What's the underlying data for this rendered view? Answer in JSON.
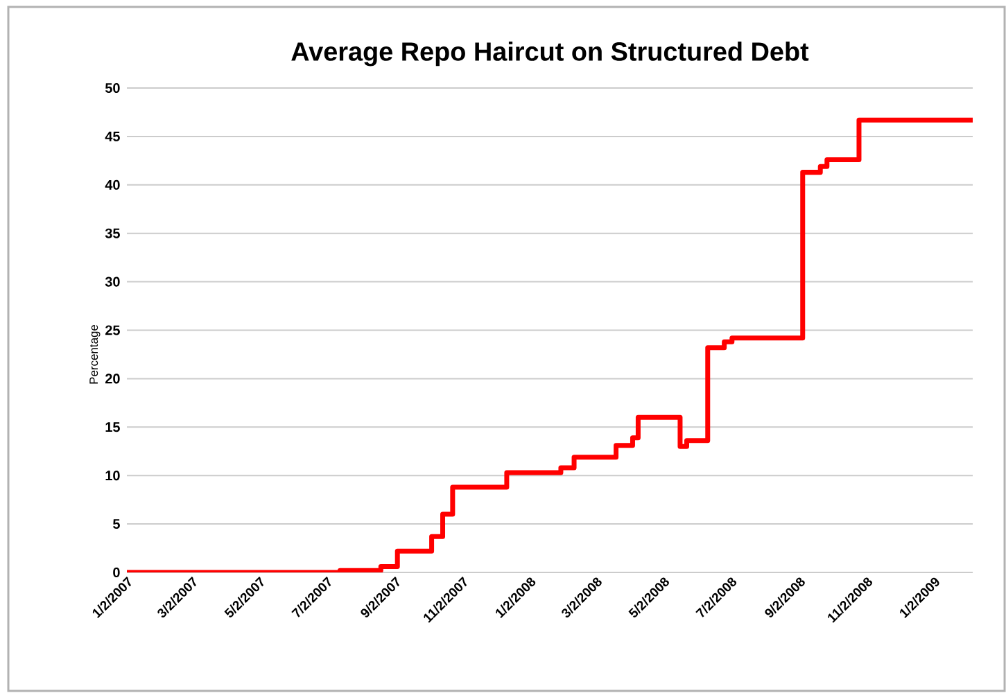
{
  "chart_data": {
    "type": "step",
    "title": "Average  Repo Haircut on Structured Debt",
    "ylabel": "Percentage",
    "x": [
      "2007-01-02",
      "2007-07-14",
      "2007-08-20",
      "2007-09-04",
      "2007-10-05",
      "2007-10-15",
      "2007-10-24",
      "2007-12-12",
      "2008-01-30",
      "2008-02-11",
      "2008-03-20",
      "2008-04-04",
      "2008-04-09",
      "2008-05-17",
      "2008-05-23",
      "2008-06-11",
      "2008-06-26",
      "2008-07-03",
      "2008-09-05",
      "2008-09-21",
      "2008-09-27",
      "2008-10-26",
      "2009-02-06"
    ],
    "values": [
      0,
      0.2,
      0.6,
      2.2,
      3.7,
      6,
      8.8,
      10.3,
      10.8,
      11.9,
      13.1,
      13.9,
      16,
      13,
      13.6,
      23.2,
      23.8,
      24.2,
      41.3,
      41.9,
      42.6,
      46.7,
      46.7
    ],
    "color": "#ff0000",
    "xlim": [
      "2007-01-02",
      "2009-02-06"
    ],
    "xticks": [
      {
        "value": "2007-01-02",
        "label": "1/2/2007"
      },
      {
        "value": "2007-03-02",
        "label": "3/2/2007"
      },
      {
        "value": "2007-05-02",
        "label": "5/2/2007"
      },
      {
        "value": "2007-07-02",
        "label": "7/2/2007"
      },
      {
        "value": "2007-09-02",
        "label": "9/2/2007"
      },
      {
        "value": "2007-11-02",
        "label": "11/2/2007"
      },
      {
        "value": "2008-01-02",
        "label": "1/2/2008"
      },
      {
        "value": "2008-03-02",
        "label": "3/2/2008"
      },
      {
        "value": "2008-05-02",
        "label": "5/2/2008"
      },
      {
        "value": "2008-07-02",
        "label": "7/2/2008"
      },
      {
        "value": "2008-09-02",
        "label": "9/2/2008"
      },
      {
        "value": "2008-11-02",
        "label": "11/2/2008"
      },
      {
        "value": "2009-01-02",
        "label": "1/2/2009"
      }
    ],
    "ylim": [
      0,
      50
    ],
    "yticks": [
      0,
      5,
      10,
      15,
      20,
      25,
      30,
      35,
      40,
      45,
      50
    ],
    "grid": "y"
  }
}
